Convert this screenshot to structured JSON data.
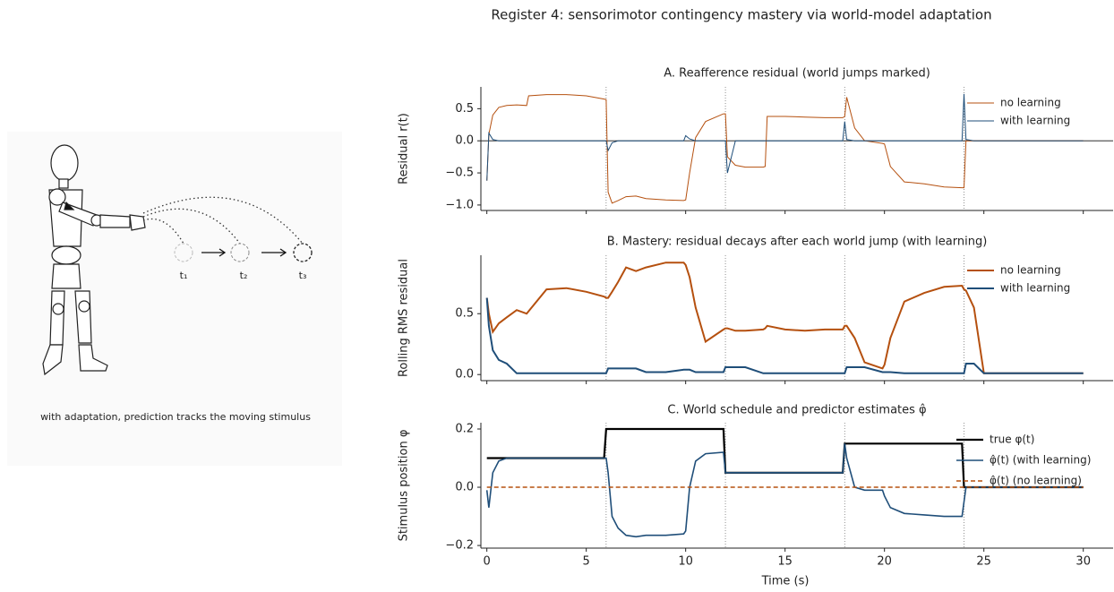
{
  "title": "Register 4: sensorimotor contingency mastery via world-model adaptation",
  "illustration": {
    "caption": "with adaptation, prediction tracks the moving stimulus",
    "labels": [
      "t₁",
      "t₂",
      "t₃"
    ]
  },
  "chart_data": [
    {
      "type": "line",
      "title": "A. Reafference residual (world jumps marked)",
      "ylabel": "Residual r(t)",
      "x": [
        0,
        0.1,
        0.3,
        0.6,
        1,
        1.5,
        2,
        2.1,
        3,
        4,
        5,
        5.9,
        6,
        6.1,
        6.3,
        6.6,
        7,
        7.5,
        8,
        9,
        9.9,
        10,
        10.2,
        10.5,
        11,
        11.9,
        12,
        12.1,
        12.5,
        13,
        13.9,
        14,
        14.1,
        15,
        16,
        17,
        17.9,
        18,
        18.1,
        18.5,
        19,
        19.9,
        20,
        20.3,
        21,
        22,
        23,
        23.9,
        24,
        24.1,
        24.5,
        25,
        26,
        28,
        30
      ],
      "series": [
        {
          "name": "no learning",
          "color": "#b5500f",
          "values": [
            -0.62,
            0.1,
            0.4,
            0.52,
            0.55,
            0.56,
            0.55,
            0.7,
            0.72,
            0.72,
            0.7,
            0.65,
            0.64,
            -0.8,
            -0.97,
            -0.93,
            -0.87,
            -0.86,
            -0.9,
            -0.92,
            -0.93,
            -0.92,
            -0.5,
            0.05,
            0.3,
            0.42,
            0.42,
            -0.25,
            -0.38,
            -0.41,
            -0.41,
            -0.4,
            0.38,
            0.38,
            0.37,
            0.36,
            0.36,
            0.38,
            0.68,
            0.2,
            0.0,
            -0.04,
            -0.05,
            -0.4,
            -0.64,
            -0.67,
            -0.72,
            -0.73,
            -0.73,
            0,
            0,
            0,
            0,
            0,
            0
          ]
        },
        {
          "name": "with learning",
          "color": "#1f4e79",
          "values": [
            -0.62,
            0.12,
            0.02,
            0,
            0,
            0,
            0,
            0,
            0,
            0,
            0,
            0,
            0,
            -0.15,
            -0.03,
            0,
            0,
            0,
            0,
            0,
            0,
            0.08,
            0.03,
            0,
            0,
            0,
            0,
            -0.5,
            0,
            0,
            0,
            0,
            0,
            0,
            0,
            0,
            0,
            0.3,
            0.02,
            0,
            0,
            0,
            0,
            0,
            0,
            0,
            0,
            0,
            0.73,
            0.02,
            0,
            0,
            0,
            0,
            0
          ]
        }
      ],
      "jumps": [
        6,
        12,
        18,
        24
      ],
      "hline": 0,
      "xlim": [
        -0.3,
        31.5
      ],
      "xticks": [
        0,
        5,
        10,
        15,
        20,
        25,
        30
      ],
      "xtick_labels": false,
      "ylim": [
        -1.085,
        0.84
      ],
      "yticks": [
        {
          "value": -1,
          "label": "−1.0"
        },
        {
          "value": -0.5,
          "label": "−0.5"
        },
        {
          "value": 0,
          "label": "0.0"
        },
        {
          "value": 0.5,
          "label": "0.5"
        }
      ],
      "legend": "upper right"
    },
    {
      "type": "line",
      "title": "B. Mastery: residual decays after each world jump (with learning)",
      "ylabel": "Rolling RMS residual",
      "x": [
        0,
        0.1,
        0.3,
        0.6,
        1,
        1.5,
        2,
        2.1,
        3,
        4,
        5,
        5.9,
        6,
        6.1,
        6.3,
        6.6,
        7,
        7.5,
        8,
        9,
        9.9,
        10,
        10.2,
        10.5,
        11,
        11.9,
        12,
        12.1,
        12.5,
        13,
        13.9,
        14,
        14.1,
        15,
        16,
        17,
        17.9,
        18,
        18.1,
        18.5,
        19,
        19.9,
        20,
        20.3,
        21,
        22,
        23,
        23.9,
        24,
        24.1,
        24.5,
        25,
        26,
        28,
        30
      ],
      "series": [
        {
          "name": "no learning",
          "color": "#b5500f",
          "values": [
            0.63,
            0.5,
            0.35,
            0.42,
            0.47,
            0.53,
            0.5,
            0.52,
            0.7,
            0.71,
            0.68,
            0.64,
            0.63,
            0.63,
            0.68,
            0.76,
            0.88,
            0.85,
            0.88,
            0.92,
            0.92,
            0.9,
            0.8,
            0.55,
            0.27,
            0.37,
            0.38,
            0.38,
            0.36,
            0.36,
            0.37,
            0.38,
            0.4,
            0.37,
            0.36,
            0.37,
            0.37,
            0.4,
            0.4,
            0.3,
            0.1,
            0.05,
            0.08,
            0.3,
            0.6,
            0.67,
            0.72,
            0.73,
            0.7,
            0.69,
            0.55,
            0.01,
            0.01,
            0.01,
            0.01
          ]
        },
        {
          "name": "with learning",
          "color": "#1f4e79",
          "values": [
            0.63,
            0.4,
            0.2,
            0.12,
            0.09,
            0.01,
            0.01,
            0.01,
            0.01,
            0.01,
            0.01,
            0.01,
            0.01,
            0.05,
            0.05,
            0.05,
            0.05,
            0.05,
            0.02,
            0.02,
            0.04,
            0.04,
            0.04,
            0.02,
            0.02,
            0.02,
            0.06,
            0.06,
            0.06,
            0.06,
            0.01,
            0.01,
            0.01,
            0.01,
            0.01,
            0.01,
            0.01,
            0.01,
            0.06,
            0.06,
            0.06,
            0.02,
            0.02,
            0.02,
            0.01,
            0.01,
            0.01,
            0.01,
            0.01,
            0.09,
            0.09,
            0.01,
            0.01,
            0.01,
            0.01
          ]
        }
      ],
      "jumps": [
        6,
        12,
        18,
        24
      ],
      "xlim": [
        -0.3,
        31.5
      ],
      "xticks": [
        0,
        5,
        10,
        15,
        20,
        25,
        30
      ],
      "xtick_labels": false,
      "ylim": [
        -0.05,
        0.98
      ],
      "yticks": [
        {
          "value": 0,
          "label": "0.0"
        },
        {
          "value": 0.5,
          "label": "0.5"
        }
      ],
      "legend": "upper right"
    },
    {
      "type": "line",
      "title": "C. World schedule and predictor estimates φ̂",
      "ylabel": "Stimulus position φ",
      "xlabel": "Time (s)",
      "x": [
        0,
        0.1,
        0.3,
        0.6,
        1,
        1.5,
        2,
        2.1,
        3,
        4,
        5,
        5.9,
        6,
        6.1,
        6.3,
        6.6,
        7,
        7.5,
        8,
        9,
        9.9,
        10,
        10.2,
        10.5,
        11,
        11.9,
        12,
        12.1,
        12.5,
        13,
        13.9,
        14,
        14.1,
        15,
        16,
        17,
        17.9,
        18,
        18.1,
        18.5,
        19,
        19.9,
        20,
        20.3,
        21,
        22,
        23,
        23.9,
        24,
        24.1,
        24.5,
        25,
        26,
        28,
        30
      ],
      "series": [
        {
          "name": "true φ(t)",
          "color": "#000000",
          "values": [
            0.1,
            0.1,
            0.1,
            0.1,
            0.1,
            0.1,
            0.1,
            0.1,
            0.1,
            0.1,
            0.1,
            0.1,
            0.2,
            0.2,
            0.2,
            0.2,
            0.2,
            0.2,
            0.2,
            0.2,
            0.2,
            0.2,
            0.2,
            0.2,
            0.2,
            0.2,
            0.05,
            0.05,
            0.05,
            0.05,
            0.05,
            0.05,
            0.05,
            0.05,
            0.05,
            0.05,
            0.05,
            0.15,
            0.15,
            0.15,
            0.15,
            0.15,
            0.15,
            0.15,
            0.15,
            0.15,
            0.15,
            0.15,
            0,
            0,
            0,
            0,
            0,
            0,
            0
          ]
        },
        {
          "name": "φ̂(t) (with learning)",
          "color": "#1f4e79",
          "values": [
            -0.01,
            -0.07,
            0.05,
            0.09,
            0.1,
            0.1,
            0.1,
            0.1,
            0.1,
            0.1,
            0.1,
            0.1,
            0.1,
            0.05,
            -0.1,
            -0.14,
            -0.165,
            -0.17,
            -0.165,
            -0.165,
            -0.16,
            -0.15,
            0.0,
            0.09,
            0.115,
            0.12,
            0.05,
            0.05,
            0.05,
            0.05,
            0.05,
            0.05,
            0.05,
            0.05,
            0.05,
            0.05,
            0.05,
            0.15,
            0.1,
            0.0,
            -0.01,
            -0.01,
            -0.03,
            -0.07,
            -0.09,
            -0.095,
            -0.1,
            -0.1,
            -0.05,
            0,
            0,
            0,
            0,
            0,
            0
          ]
        },
        {
          "name": "φ̂(t) (no learning)",
          "color": "#b5500f",
          "linestyle": "dashed",
          "values": [
            0,
            0,
            0,
            0,
            0,
            0,
            0,
            0,
            0,
            0,
            0,
            0,
            0,
            0,
            0,
            0,
            0,
            0,
            0,
            0,
            0,
            0,
            0,
            0,
            0,
            0,
            0,
            0,
            0,
            0,
            0,
            0,
            0,
            0,
            0,
            0,
            0,
            0,
            0,
            0,
            0,
            0,
            0,
            0,
            0,
            0,
            0,
            0,
            0,
            0,
            0,
            0,
            0,
            0,
            0
          ]
        }
      ],
      "jumps": [
        6,
        12,
        18,
        24
      ],
      "xlim": [
        -0.3,
        31.5
      ],
      "xticks": [
        0,
        5,
        10,
        15,
        20,
        25,
        30
      ],
      "xtick_labels": true,
      "ylim": [
        -0.209,
        0.2215
      ],
      "yticks": [
        {
          "value": -0.2,
          "label": "−0.2"
        },
        {
          "value": 0,
          "label": "0.0"
        },
        {
          "value": 0.2,
          "label": "0.2"
        }
      ],
      "legend": "upper right"
    }
  ]
}
